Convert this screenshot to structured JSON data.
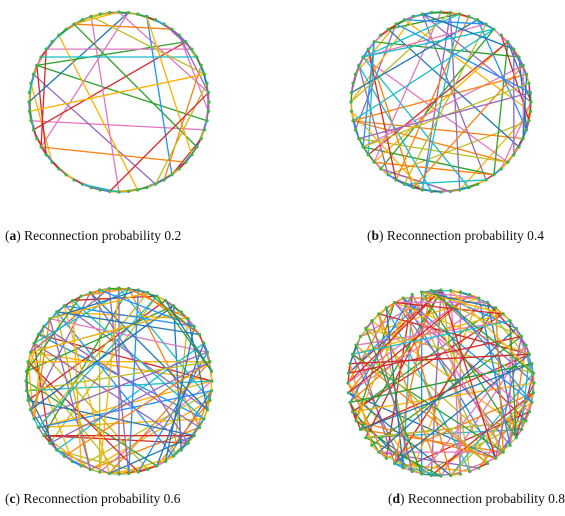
{
  "panels": [
    {
      "open": "(",
      "label": "a",
      "text": ") Reconnection probability ",
      "probability": 0.2
    },
    {
      "open": "(",
      "label": "b",
      "text": ") Reconnection probability ",
      "probability": 0.4
    },
    {
      "open": "(",
      "label": "c",
      "text": ") Reconnection probability ",
      "probability": 0.6
    },
    {
      "open": "(",
      "label": "d",
      "text": ") Reconnection probability ",
      "probability": 0.8
    }
  ]
}
